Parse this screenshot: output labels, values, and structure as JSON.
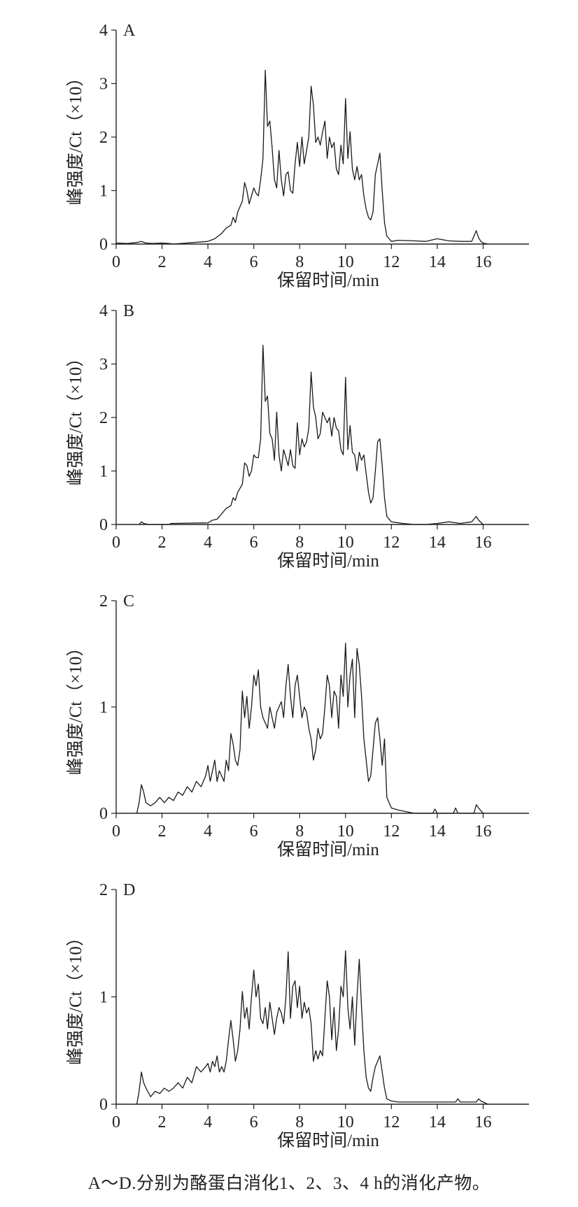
{
  "caption": "A～D.分别为酪蛋白消化1、2、3、4 h的消化产物。",
  "chart_data": [
    {
      "type": "line",
      "panel": "A",
      "xlabel": "保留时间/min",
      "ylabel": "峰强度/Ct（×10）",
      "xlim": [
        0,
        18
      ],
      "ylim": [
        0,
        4
      ],
      "xticks": [
        0,
        2,
        4,
        6,
        8,
        10,
        12,
        14,
        16
      ],
      "yticks": [
        0,
        1,
        2,
        3,
        4
      ],
      "grid": false,
      "series": [
        {
          "x": [
            0,
            0.5,
            0.9,
            1.1,
            1.3,
            1.6,
            2.0,
            2.3,
            2.5,
            4.0,
            4.3,
            4.6,
            4.8,
            5.0,
            5.1,
            5.2,
            5.3,
            5.5,
            5.6,
            5.7,
            5.8,
            5.9,
            6.0,
            6.1,
            6.2,
            6.3,
            6.4,
            6.5,
            6.6,
            6.7,
            6.8,
            6.9,
            7.0,
            7.1,
            7.2,
            7.3,
            7.4,
            7.5,
            7.6,
            7.7,
            7.8,
            7.9,
            8.0,
            8.1,
            8.2,
            8.3,
            8.4,
            8.5,
            8.6,
            8.7,
            8.8,
            8.9,
            9.0,
            9.1,
            9.2,
            9.3,
            9.4,
            9.5,
            9.6,
            9.7,
            9.8,
            9.9,
            10.0,
            10.1,
            10.2,
            10.3,
            10.4,
            10.5,
            10.6,
            10.7,
            10.8,
            10.9,
            11.0,
            11.1,
            11.2,
            11.3,
            11.4,
            11.5,
            11.6,
            11.7,
            11.8,
            12.0,
            12.3,
            13.0,
            13.5,
            14.0,
            14.5,
            15.0,
            15.5,
            15.7,
            15.8,
            15.9,
            16.0,
            16.2
          ],
          "y": [
            0.02,
            0.01,
            0.03,
            0.05,
            0.02,
            0.01,
            0.02,
            0.01,
            0.0,
            0.05,
            0.1,
            0.2,
            0.3,
            0.35,
            0.5,
            0.4,
            0.6,
            0.8,
            1.15,
            1.0,
            0.75,
            0.9,
            1.05,
            0.95,
            0.9,
            1.2,
            1.6,
            3.25,
            2.2,
            2.3,
            1.8,
            1.2,
            1.05,
            1.75,
            1.2,
            0.9,
            1.3,
            1.35,
            1.0,
            0.95,
            1.5,
            1.9,
            1.45,
            2.0,
            1.5,
            1.75,
            2.0,
            2.95,
            2.6,
            1.9,
            2.0,
            1.85,
            2.1,
            2.3,
            1.6,
            2.0,
            1.8,
            1.9,
            1.4,
            1.3,
            1.85,
            1.5,
            2.72,
            1.6,
            2.1,
            1.4,
            1.2,
            1.45,
            1.2,
            1.3,
            0.9,
            0.65,
            0.5,
            0.45,
            0.6,
            1.3,
            1.5,
            1.7,
            1.0,
            0.4,
            0.15,
            0.05,
            0.07,
            0.06,
            0.05,
            0.1,
            0.06,
            0.05,
            0.05,
            0.25,
            0.12,
            0.05,
            0.02,
            0.0
          ]
        }
      ]
    },
    {
      "type": "line",
      "panel": "B",
      "xlabel": "保留时间/min",
      "ylabel": "峰强度/Ct（×10）",
      "xlim": [
        0,
        18
      ],
      "ylim": [
        0,
        4
      ],
      "xticks": [
        0,
        2,
        4,
        6,
        8,
        10,
        12,
        14,
        16
      ],
      "yticks": [
        0,
        1,
        2,
        3,
        4
      ],
      "grid": false,
      "series": [
        {
          "x": [
            1.0,
            1.1,
            1.2,
            1.4,
            2.3,
            2.4,
            4.0,
            4.2,
            4.4,
            4.6,
            4.8,
            5.0,
            5.1,
            5.2,
            5.3,
            5.5,
            5.6,
            5.7,
            5.8,
            5.9,
            6.0,
            6.1,
            6.2,
            6.3,
            6.4,
            6.5,
            6.6,
            6.7,
            6.8,
            6.9,
            7.0,
            7.1,
            7.2,
            7.3,
            7.4,
            7.5,
            7.6,
            7.7,
            7.8,
            7.9,
            8.0,
            8.1,
            8.2,
            8.3,
            8.4,
            8.5,
            8.6,
            8.7,
            8.8,
            8.9,
            9.0,
            9.1,
            9.2,
            9.3,
            9.4,
            9.5,
            9.6,
            9.7,
            9.8,
            9.9,
            10.0,
            10.1,
            10.2,
            10.3,
            10.4,
            10.5,
            10.6,
            10.7,
            10.8,
            10.9,
            11.0,
            11.1,
            11.2,
            11.3,
            11.4,
            11.5,
            11.6,
            11.7,
            11.8,
            12.0,
            12.5,
            13.0,
            13.5,
            14.0,
            14.5,
            15.0,
            15.5,
            15.7,
            15.8,
            16.0
          ],
          "y": [
            0.0,
            0.05,
            0.02,
            0.0,
            0.0,
            0.02,
            0.03,
            0.08,
            0.1,
            0.2,
            0.3,
            0.35,
            0.5,
            0.45,
            0.6,
            0.75,
            1.15,
            1.1,
            0.9,
            1.0,
            1.3,
            1.25,
            1.25,
            1.6,
            3.35,
            2.3,
            2.4,
            1.7,
            1.6,
            1.2,
            2.1,
            1.3,
            1.0,
            1.4,
            1.25,
            1.1,
            1.4,
            1.1,
            1.05,
            1.9,
            1.3,
            1.6,
            1.45,
            1.55,
            1.8,
            2.85,
            2.2,
            2.0,
            1.6,
            1.7,
            2.1,
            2.0,
            1.9,
            2.0,
            1.65,
            2.0,
            1.8,
            1.75,
            1.4,
            1.3,
            2.75,
            1.4,
            1.85,
            1.35,
            1.3,
            1.0,
            1.35,
            1.2,
            1.3,
            0.95,
            0.6,
            0.4,
            0.5,
            1.0,
            1.55,
            1.6,
            1.1,
            0.5,
            0.15,
            0.05,
            0.02,
            0.0,
            0.0,
            0.02,
            0.05,
            0.02,
            0.05,
            0.15,
            0.08,
            0.0
          ]
        }
      ]
    },
    {
      "type": "line",
      "panel": "C",
      "xlabel": "保留时间/min",
      "ylabel": "峰强度/Ct（×10）",
      "xlim": [
        0,
        18
      ],
      "ylim": [
        0,
        2
      ],
      "xticks": [
        0,
        2,
        4,
        6,
        8,
        10,
        12,
        14,
        16
      ],
      "yticks": [
        0,
        1,
        2
      ],
      "grid": false,
      "series": [
        {
          "x": [
            0.9,
            1.0,
            1.1,
            1.2,
            1.3,
            1.5,
            1.7,
            1.9,
            2.1,
            2.3,
            2.5,
            2.7,
            2.9,
            3.1,
            3.3,
            3.5,
            3.7,
            3.9,
            4.0,
            4.1,
            4.2,
            4.3,
            4.4,
            4.5,
            4.6,
            4.7,
            4.8,
            4.9,
            5.0,
            5.1,
            5.2,
            5.3,
            5.4,
            5.5,
            5.6,
            5.7,
            5.8,
            5.9,
            6.0,
            6.1,
            6.2,
            6.3,
            6.4,
            6.5,
            6.6,
            6.7,
            6.8,
            6.9,
            7.0,
            7.1,
            7.2,
            7.3,
            7.4,
            7.5,
            7.6,
            7.7,
            7.8,
            7.9,
            8.0,
            8.1,
            8.2,
            8.3,
            8.4,
            8.5,
            8.6,
            8.7,
            8.8,
            8.9,
            9.0,
            9.1,
            9.2,
            9.3,
            9.4,
            9.5,
            9.6,
            9.7,
            9.8,
            9.9,
            10.0,
            10.1,
            10.2,
            10.3,
            10.4,
            10.5,
            10.6,
            10.7,
            10.8,
            10.9,
            11.0,
            11.1,
            11.2,
            11.3,
            11.4,
            11.5,
            11.6,
            11.7,
            11.8,
            12.0,
            12.3,
            13.0,
            13.8,
            13.9,
            14.0,
            14.7,
            14.8,
            14.9,
            15.6,
            15.7,
            15.8,
            16.0
          ],
          "y": [
            0.0,
            0.1,
            0.27,
            0.2,
            0.1,
            0.07,
            0.1,
            0.15,
            0.1,
            0.15,
            0.12,
            0.2,
            0.17,
            0.25,
            0.2,
            0.3,
            0.25,
            0.35,
            0.45,
            0.3,
            0.4,
            0.5,
            0.3,
            0.4,
            0.35,
            0.3,
            0.5,
            0.4,
            0.75,
            0.65,
            0.5,
            0.45,
            0.6,
            1.15,
            0.9,
            1.1,
            0.8,
            1.0,
            1.3,
            1.2,
            1.35,
            1.0,
            0.9,
            0.85,
            0.8,
            1.0,
            0.9,
            0.8,
            0.95,
            1.0,
            1.05,
            0.9,
            1.2,
            1.4,
            1.1,
            0.9,
            1.2,
            1.3,
            1.1,
            0.9,
            1.0,
            0.95,
            0.8,
            0.7,
            0.5,
            0.6,
            0.8,
            0.7,
            0.75,
            1.0,
            1.3,
            1.2,
            0.9,
            1.15,
            1.1,
            0.8,
            1.3,
            1.1,
            1.6,
            1.0,
            1.3,
            1.45,
            0.9,
            1.55,
            1.4,
            1.1,
            0.7,
            0.5,
            0.3,
            0.35,
            0.6,
            0.85,
            0.9,
            0.7,
            0.45,
            0.7,
            0.15,
            0.05,
            0.03,
            0.0,
            0.0,
            0.04,
            0.0,
            0.0,
            0.05,
            0.0,
            0.0,
            0.08,
            0.05,
            0.0
          ]
        }
      ]
    },
    {
      "type": "line",
      "panel": "D",
      "xlabel": "保留时间/min",
      "ylabel": "峰强度/Ct（×10）",
      "xlim": [
        0,
        18
      ],
      "ylim": [
        0,
        2
      ],
      "xticks": [
        0,
        2,
        4,
        6,
        8,
        10,
        12,
        14,
        16
      ],
      "yticks": [
        0,
        1,
        2
      ],
      "grid": false,
      "series": [
        {
          "x": [
            0.9,
            1.0,
            1.1,
            1.2,
            1.3,
            1.5,
            1.7,
            1.9,
            2.1,
            2.3,
            2.5,
            2.7,
            2.9,
            3.1,
            3.3,
            3.5,
            3.7,
            3.9,
            4.0,
            4.1,
            4.2,
            4.3,
            4.4,
            4.5,
            4.6,
            4.7,
            4.8,
            4.9,
            5.0,
            5.1,
            5.2,
            5.3,
            5.4,
            5.5,
            5.6,
            5.7,
            5.8,
            5.9,
            6.0,
            6.1,
            6.2,
            6.3,
            6.4,
            6.5,
            6.6,
            6.7,
            6.8,
            6.9,
            7.0,
            7.1,
            7.2,
            7.3,
            7.4,
            7.5,
            7.6,
            7.7,
            7.8,
            7.9,
            8.0,
            8.1,
            8.2,
            8.3,
            8.4,
            8.5,
            8.6,
            8.7,
            8.8,
            8.9,
            9.0,
            9.1,
            9.2,
            9.3,
            9.4,
            9.5,
            9.6,
            9.7,
            9.8,
            9.9,
            10.0,
            10.1,
            10.2,
            10.3,
            10.4,
            10.5,
            10.6,
            10.7,
            10.8,
            10.9,
            11.0,
            11.1,
            11.2,
            11.3,
            11.4,
            11.5,
            11.6,
            11.7,
            11.8,
            12.0,
            12.3,
            13.0,
            14.0,
            14.8,
            14.9,
            15.0,
            15.7,
            15.8,
            15.9,
            16.2
          ],
          "y": [
            0.0,
            0.12,
            0.3,
            0.2,
            0.15,
            0.07,
            0.12,
            0.1,
            0.15,
            0.12,
            0.15,
            0.2,
            0.15,
            0.25,
            0.2,
            0.35,
            0.3,
            0.35,
            0.38,
            0.3,
            0.4,
            0.35,
            0.45,
            0.3,
            0.35,
            0.3,
            0.4,
            0.6,
            0.78,
            0.6,
            0.4,
            0.5,
            0.7,
            1.05,
            0.8,
            0.9,
            0.7,
            1.0,
            1.25,
            1.0,
            1.12,
            0.8,
            0.75,
            0.9,
            0.7,
            0.95,
            0.8,
            0.65,
            0.8,
            0.9,
            0.85,
            0.75,
            1.0,
            1.42,
            0.8,
            1.1,
            1.15,
            0.9,
            1.1,
            0.8,
            0.95,
            0.85,
            0.9,
            0.75,
            0.4,
            0.5,
            0.42,
            0.5,
            0.45,
            0.8,
            1.15,
            1.0,
            0.6,
            0.9,
            0.5,
            0.7,
            1.1,
            1.0,
            1.43,
            0.9,
            0.7,
            1.0,
            0.55,
            1.0,
            1.35,
            0.9,
            0.5,
            0.25,
            0.15,
            0.12,
            0.25,
            0.35,
            0.4,
            0.45,
            0.3,
            0.15,
            0.05,
            0.03,
            0.02,
            0.02,
            0.02,
            0.02,
            0.05,
            0.02,
            0.02,
            0.05,
            0.03,
            0.0
          ]
        }
      ]
    }
  ]
}
